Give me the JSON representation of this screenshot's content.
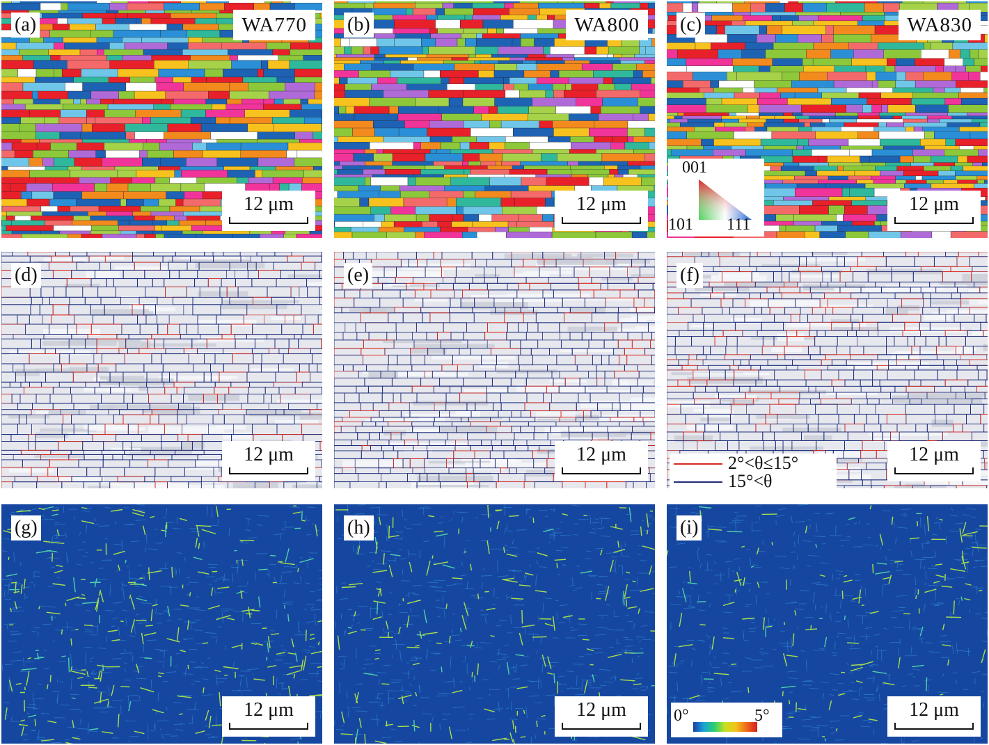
{
  "colors": {
    "ipf_red": "#e8202a",
    "ipf_green": "#8cc83a",
    "ipf_blue": "#1e62b4",
    "lagb_red": "#d9281e",
    "hagb_blue": "#1e2d7a",
    "kam_background": "#1647a0",
    "kam_feature": "#a8e04a"
  },
  "panels": [
    {
      "label": "(a)",
      "title": "WA770",
      "scale": "12 μm",
      "type": "ipf-map"
    },
    {
      "label": "(b)",
      "title": "WA800",
      "scale": "12 μm",
      "type": "ipf-map"
    },
    {
      "label": "(c)",
      "title": "WA830",
      "scale": "12 μm",
      "type": "ipf-map"
    },
    {
      "label": "(d)",
      "scale": "12 μm",
      "type": "grain-boundary-map"
    },
    {
      "label": "(e)",
      "scale": "12 μm",
      "type": "grain-boundary-map"
    },
    {
      "label": "(f)",
      "scale": "12 μm",
      "type": "grain-boundary-map"
    },
    {
      "label": "(g)",
      "scale": "12 μm",
      "type": "kam-map"
    },
    {
      "label": "(h)",
      "scale": "12 μm",
      "type": "kam-map"
    },
    {
      "label": "(i)",
      "scale": "12 μm",
      "type": "kam-map"
    }
  ],
  "ipf_legend": {
    "top": "001",
    "left": "101",
    "right": "111"
  },
  "boundary_legend": {
    "low_angle": "2°<θ≤15°",
    "high_angle": "15°<θ"
  },
  "kam_legend": {
    "min": "0°",
    "max": "5°"
  }
}
